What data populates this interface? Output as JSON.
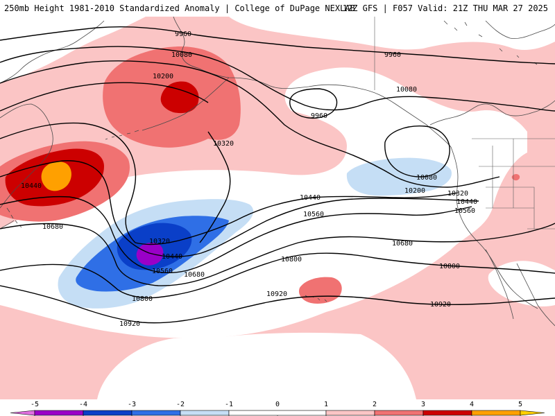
{
  "header": {
    "title_left": "250mb Height 1981-2010 Standardized Anomaly | College of DuPage NEXLAB",
    "title_right": "12Z GFS | F057 Valid: 21Z THU MAR 27 2025"
  },
  "colors": {
    "anom_pos_1": "#fbc5c5",
    "anom_pos_2": "#f07272",
    "anom_pos_3": "#cc0000",
    "anom_pos_4": "#ffa000",
    "anom_neg_1": "#c5def5",
    "anom_neg_2": "#2f6fe6",
    "anom_neg_3": "#0a3fc8",
    "anom_neg_4": "#9a00c8",
    "coastline": "#4a4a4a",
    "contour": "#000000"
  },
  "contour_labels": [
    {
      "id": "9960-a",
      "text": "9960"
    },
    {
      "id": "9960-b",
      "text": "9960"
    },
    {
      "id": "9960-c",
      "text": "9960"
    },
    {
      "id": "10080-a",
      "text": "10080"
    },
    {
      "id": "10080-b",
      "text": "10080"
    },
    {
      "id": "10080-c",
      "text": "10080"
    },
    {
      "id": "10200-a",
      "text": "10200"
    },
    {
      "id": "10200-b",
      "text": "10200"
    },
    {
      "id": "10320-a",
      "text": "10320"
    },
    {
      "id": "10320-b",
      "text": "10320"
    },
    {
      "id": "10320-c",
      "text": "10320"
    },
    {
      "id": "10440-a",
      "text": "10440"
    },
    {
      "id": "10440-b",
      "text": "10440"
    },
    {
      "id": "10440-c",
      "text": "10440"
    },
    {
      "id": "10440-d",
      "text": "10440"
    },
    {
      "id": "10560-a",
      "text": "10560"
    },
    {
      "id": "10560-b",
      "text": "10560"
    },
    {
      "id": "10560-c",
      "text": "10560"
    },
    {
      "id": "10680-a",
      "text": "10680"
    },
    {
      "id": "10680-b",
      "text": "10680"
    },
    {
      "id": "10680-c",
      "text": "10680"
    },
    {
      "id": "10800-a",
      "text": "10800"
    },
    {
      "id": "10800-b",
      "text": "10800"
    },
    {
      "id": "10800-c",
      "text": "10800"
    },
    {
      "id": "10920-a",
      "text": "10920"
    },
    {
      "id": "10920-b",
      "text": "10920"
    },
    {
      "id": "10920-c",
      "text": "10920"
    }
  ],
  "colorbar": {
    "ticks": [
      "-5",
      "-4",
      "-3",
      "-2",
      "-1",
      "0",
      "1",
      "2",
      "3",
      "4",
      "5"
    ],
    "bins": [
      {
        "lo": -5.5,
        "hi": -5,
        "color": "#e070e0"
      },
      {
        "lo": -5,
        "hi": -4,
        "color": "#9a00c8"
      },
      {
        "lo": -4,
        "hi": -3,
        "color": "#0a3fc8"
      },
      {
        "lo": -3,
        "hi": -2,
        "color": "#2f6fe6"
      },
      {
        "lo": -2,
        "hi": -1,
        "color": "#c5def5"
      },
      {
        "lo": -1,
        "hi": 1,
        "color": "#ffffff"
      },
      {
        "lo": 1,
        "hi": 2,
        "color": "#fbc5c5"
      },
      {
        "lo": 2,
        "hi": 3,
        "color": "#f07272"
      },
      {
        "lo": 3,
        "hi": 4,
        "color": "#cc0000"
      },
      {
        "lo": 4,
        "hi": 5,
        "color": "#ffa000"
      },
      {
        "lo": 5,
        "hi": 5.5,
        "color": "#ffd000"
      }
    ]
  }
}
